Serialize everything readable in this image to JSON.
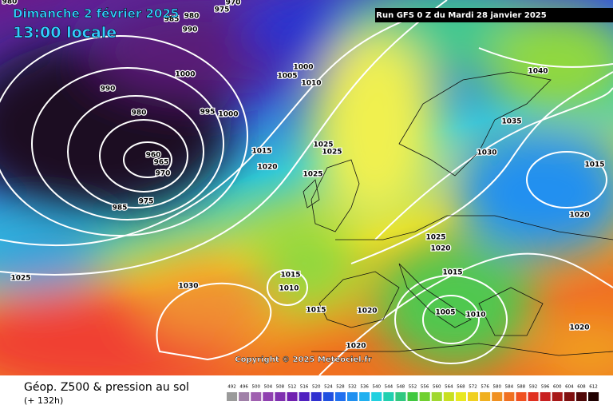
{
  "header": {
    "date": "Dimanche 2 février 2025",
    "time": "13:00 locale",
    "run": "Run GFS 0 Z du Mardi 28 janvier 2025"
  },
  "copyright": "Copyright © 2025 Meteociel.fr",
  "footer": {
    "title": "Géop. Z500 & pression au sol",
    "lead": "(+ 132h)"
  },
  "isobar_labels": [
    "980",
    "985",
    "980",
    "975",
    "970",
    "990",
    "1000",
    "990",
    "980",
    "995",
    "1000",
    "1000",
    "1005",
    "1010",
    "960",
    "965",
    "970",
    "975",
    "985",
    "1015",
    "1020",
    "1025",
    "1025",
    "1025",
    "1030",
    "1035",
    "1040",
    "1015",
    "1020",
    "1025",
    "1020",
    "1015",
    "1015",
    "1010",
    "1015",
    "1020",
    "1005",
    "1010",
    "1020",
    "1025",
    "1030",
    "1020"
  ],
  "scale": [
    492,
    496,
    500,
    504,
    508,
    512,
    516,
    520,
    524,
    528,
    532,
    536,
    540,
    544,
    548,
    552,
    556,
    560,
    564,
    568,
    572,
    576,
    580,
    584,
    588,
    592,
    596,
    600,
    604,
    608,
    612
  ]
}
